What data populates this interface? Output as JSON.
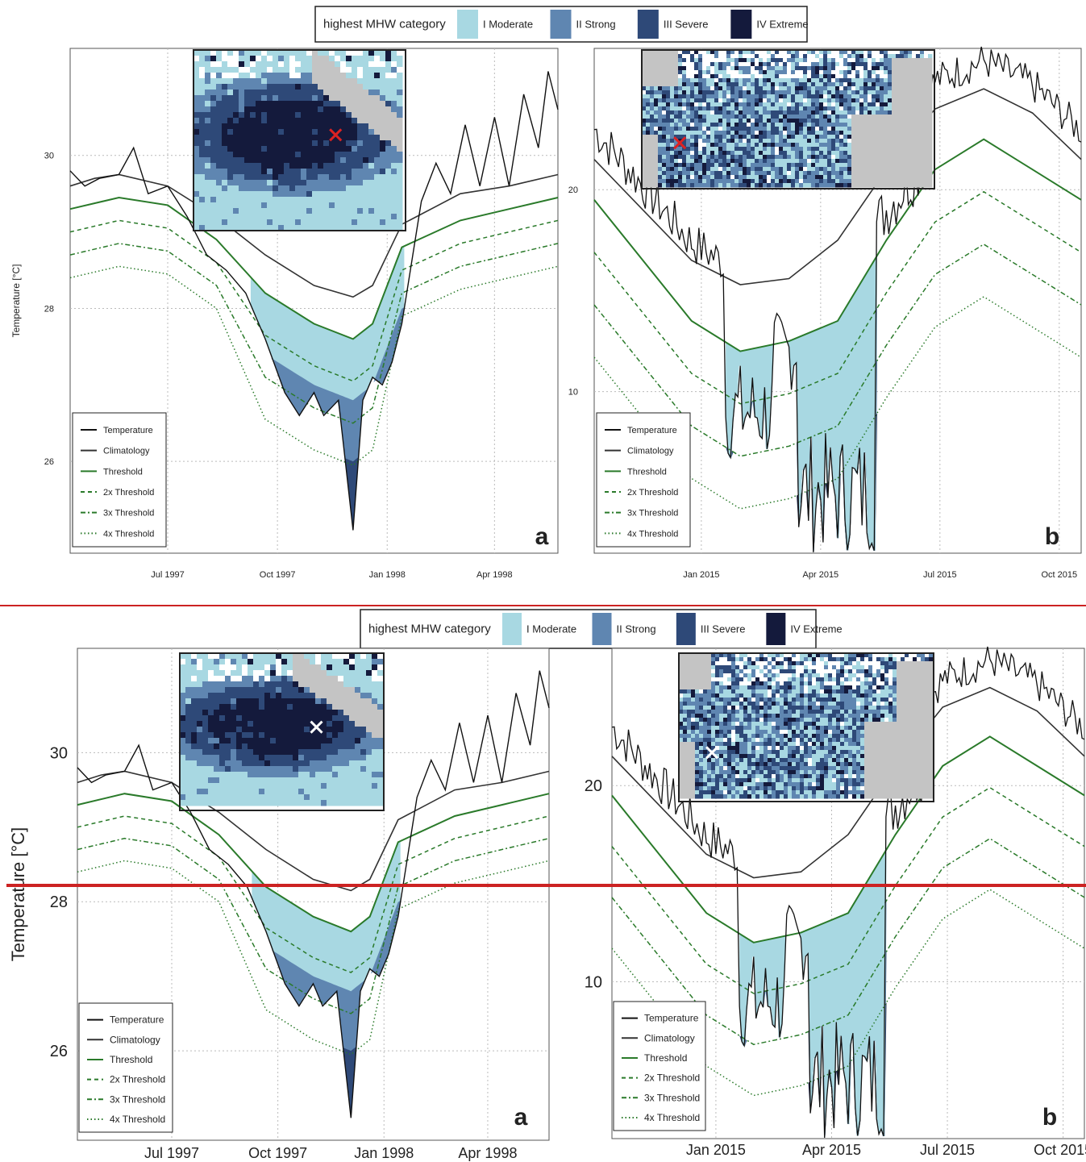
{
  "legend": {
    "title": "highest MHW category",
    "items": [
      {
        "label": "I Moderate",
        "color": "#a8d8e2"
      },
      {
        "label": "II Strong",
        "color": "#5f86b1"
      },
      {
        "label": "III Severe",
        "color": "#2e4978"
      },
      {
        "label": "IV Extreme",
        "color": "#141a3c"
      }
    ]
  },
  "line_legend": [
    "Temperature",
    "Climatology",
    "Threshold",
    "2x Threshold",
    "3x Threshold",
    "4x Threshold"
  ],
  "colors": {
    "temperature": "#111111",
    "climatology": "#333333",
    "threshold": "#2a7a2a",
    "divider_red": "#cc2222"
  },
  "chart_data": [
    {
      "type": "line",
      "id": "top-a",
      "panel_label": "a",
      "ylabel": "Temperature [°C]",
      "y_ticks": [
        "26",
        "28",
        "30"
      ],
      "x_ticks": [
        "Jul 1997",
        "Oct 1997",
        "Jan 1998",
        "Apr 1998"
      ],
      "ylim": [
        24.8,
        31.4
      ],
      "inset": "Indian Ocean (Sumatra) map with red marker",
      "series": [
        {
          "name": "Climatology",
          "x": [
            0,
            0.05,
            0.1,
            0.2,
            0.3,
            0.4,
            0.5,
            0.58,
            0.62,
            0.68,
            0.8,
            0.9,
            1.0
          ],
          "y": [
            29.6,
            29.7,
            29.75,
            29.6,
            29.2,
            28.7,
            28.3,
            28.15,
            28.3,
            29.1,
            29.5,
            29.6,
            29.75
          ]
        },
        {
          "name": "Threshold",
          "x": [
            0,
            0.1,
            0.2,
            0.3,
            0.4,
            0.5,
            0.58,
            0.62,
            0.68,
            0.8,
            0.9,
            1.0
          ],
          "y": [
            29.3,
            29.45,
            29.35,
            28.9,
            28.2,
            27.8,
            27.6,
            27.8,
            28.8,
            29.15,
            29.3,
            29.45
          ]
        },
        {
          "name": "Temperature",
          "x": [
            0,
            0.03,
            0.06,
            0.1,
            0.13,
            0.16,
            0.2,
            0.24,
            0.28,
            0.32,
            0.36,
            0.4,
            0.44,
            0.47,
            0.5,
            0.52,
            0.55,
            0.58,
            0.6,
            0.62,
            0.64,
            0.66,
            0.68,
            0.7,
            0.72,
            0.75,
            0.78,
            0.81,
            0.84,
            0.87,
            0.9,
            0.93,
            0.96,
            0.98,
            1.0
          ],
          "y": [
            29.8,
            29.6,
            29.7,
            29.75,
            30.1,
            29.5,
            29.6,
            29.2,
            28.7,
            28.5,
            28.2,
            27.6,
            26.9,
            26.6,
            26.9,
            26.6,
            26.8,
            25.1,
            26.8,
            27.1,
            27.0,
            27.3,
            27.8,
            28.6,
            29.4,
            29.9,
            29.5,
            30.4,
            29.6,
            30.5,
            29.6,
            30.8,
            30.1,
            31.1,
            30.6
          ]
        }
      ]
    },
    {
      "type": "line",
      "id": "top-b",
      "panel_label": "b",
      "y_ticks": [
        "10",
        "20"
      ],
      "x_ticks": [
        "Jan 2015",
        "Apr 2015",
        "Jul 2015",
        "Oct 2015"
      ],
      "ylim": [
        2,
        27
      ],
      "inset": "North Atlantic map with red marker",
      "series": [
        {
          "name": "Climatology",
          "x": [
            0,
            0.1,
            0.2,
            0.3,
            0.4,
            0.5,
            0.6,
            0.7,
            0.8,
            0.9,
            1.0
          ],
          "y": [
            21.5,
            19.0,
            16.5,
            15.3,
            15.6,
            17.5,
            21.0,
            24.0,
            25.0,
            23.8,
            21.5
          ]
        },
        {
          "name": "Threshold",
          "x": [
            0,
            0.1,
            0.2,
            0.3,
            0.4,
            0.5,
            0.6,
            0.7,
            0.8,
            0.9,
            1.0
          ],
          "y": [
            19.5,
            16.5,
            13.5,
            12.0,
            12.5,
            13.5,
            17.5,
            21.0,
            22.5,
            21.0,
            19.5
          ]
        }
      ]
    }
  ]
}
